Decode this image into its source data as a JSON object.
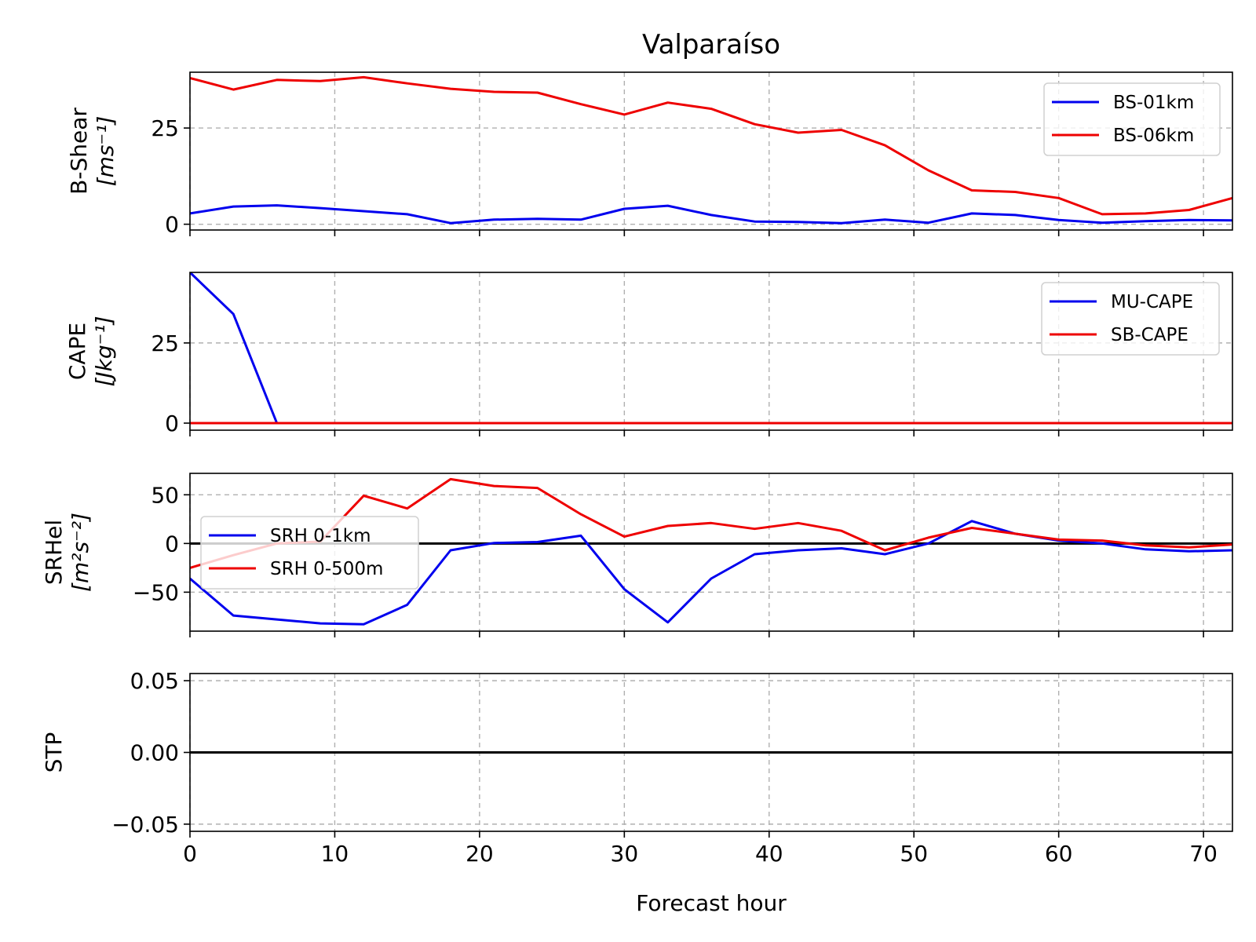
{
  "figure": {
    "title": "Valparaíso",
    "xlabel": "Forecast hour"
  },
  "chart_data": [
    {
      "type": "line",
      "ylabel_main": "B-Shear",
      "ylabel_unit": "[ms⁻¹]",
      "xlim": [
        0,
        72
      ],
      "ylim": [
        -1.5,
        39.5
      ],
      "xticks": [
        0,
        10,
        20,
        30,
        40,
        50,
        60,
        70
      ],
      "yticks": [
        0,
        25
      ],
      "ytick_labels": [
        "0",
        "25"
      ],
      "zero_line": false,
      "legend_loc": "upper-right",
      "x": [
        0,
        3,
        6,
        9,
        12,
        15,
        18,
        21,
        24,
        27,
        30,
        33,
        36,
        39,
        42,
        45,
        48,
        51,
        54,
        57,
        60,
        63,
        66,
        69,
        72
      ],
      "series": [
        {
          "name": "BS-01km",
          "color": "#0000ee",
          "values": [
            2.8,
            4.6,
            4.9,
            4.2,
            3.4,
            2.6,
            0.3,
            1.2,
            1.4,
            1.2,
            4.0,
            4.8,
            2.4,
            0.7,
            0.6,
            0.3,
            1.2,
            0.4,
            2.8,
            2.4,
            1.1,
            0.4,
            0.8,
            1.1,
            1.0
          ]
        },
        {
          "name": "BS-06km",
          "color": "#ee0000",
          "values": [
            38.0,
            35.0,
            37.5,
            37.2,
            38.2,
            36.6,
            35.2,
            34.4,
            34.2,
            31.2,
            28.5,
            31.6,
            30.0,
            26.0,
            23.8,
            24.5,
            20.5,
            14.0,
            8.8,
            8.4,
            6.8,
            2.6,
            2.8,
            3.7,
            6.8
          ]
        }
      ]
    },
    {
      "type": "line",
      "ylabel_main": "CAPE",
      "ylabel_unit": "[Jkg⁻¹]",
      "xlim": [
        0,
        72
      ],
      "ylim": [
        -2.2,
        47
      ],
      "xticks": [
        0,
        10,
        20,
        30,
        40,
        50,
        60,
        70
      ],
      "yticks": [
        0,
        25
      ],
      "ytick_labels": [
        "0",
        "25"
      ],
      "zero_line": false,
      "legend_loc": "upper-right",
      "x": [
        0,
        3,
        6,
        9,
        12,
        15,
        18,
        21,
        24,
        27,
        30,
        33,
        36,
        39,
        42,
        45,
        48,
        51,
        54,
        57,
        60,
        63,
        66,
        69,
        72
      ],
      "series": [
        {
          "name": "MU-CAPE",
          "color": "#0000ee",
          "values": [
            47,
            34,
            0,
            0,
            0,
            0,
            0,
            0,
            0,
            0,
            0,
            0,
            0,
            0,
            0,
            0,
            0,
            0,
            0,
            0,
            0,
            0,
            0,
            0,
            0
          ]
        },
        {
          "name": "SB-CAPE",
          "color": "#ee0000",
          "values": [
            0,
            0,
            0,
            0,
            0,
            0,
            0,
            0,
            0,
            0,
            0,
            0,
            0,
            0,
            0,
            0,
            0,
            0,
            0,
            0,
            0,
            0,
            0,
            0,
            0
          ]
        }
      ]
    },
    {
      "type": "line",
      "ylabel_main": "SRHel",
      "ylabel_unit": "[m²s⁻²]",
      "xlim": [
        0,
        72
      ],
      "ylim": [
        -90,
        72
      ],
      "xticks": [
        0,
        10,
        20,
        30,
        40,
        50,
        60,
        70
      ],
      "yticks": [
        -50,
        0,
        50
      ],
      "ytick_labels": [
        "−50",
        "0",
        "50"
      ],
      "zero_line": true,
      "legend_loc": "center-left",
      "x": [
        0,
        3,
        6,
        9,
        12,
        15,
        18,
        21,
        24,
        27,
        30,
        33,
        36,
        39,
        42,
        45,
        48,
        51,
        54,
        57,
        60,
        63,
        66,
        69,
        72
      ],
      "series": [
        {
          "name": "SRH 0-1km",
          "color": "#0000ee",
          "values": [
            -36,
            -74,
            -78,
            -82,
            -83,
            -63,
            -7,
            0.5,
            1.5,
            8,
            -47,
            -81,
            -36,
            -11,
            -7,
            -5,
            -11,
            0,
            23,
            10,
            3,
            0,
            -6,
            -8,
            -7
          ]
        },
        {
          "name": "SRH 0-500m",
          "color": "#ee0000",
          "values": [
            -25,
            -12,
            0,
            2,
            49,
            36,
            66,
            59,
            57,
            30,
            7,
            18,
            21,
            15,
            21,
            13,
            -7,
            6,
            16,
            10,
            4,
            3,
            -2,
            -4,
            -1
          ]
        }
      ]
    },
    {
      "type": "line",
      "ylabel_main": "STP",
      "ylabel_unit": "",
      "xlim": [
        0,
        72
      ],
      "ylim": [
        -0.055,
        0.055
      ],
      "xticks": [
        0,
        10,
        20,
        30,
        40,
        50,
        60,
        70
      ],
      "yticks": [
        -0.05,
        0,
        0.05
      ],
      "ytick_labels": [
        "−0.05",
        "0.00",
        "0.05"
      ],
      "zero_line": true,
      "legend_loc": "",
      "x": [
        0,
        3,
        6,
        9,
        12,
        15,
        18,
        21,
        24,
        27,
        30,
        33,
        36,
        39,
        42,
        45,
        48,
        51,
        54,
        57,
        60,
        63,
        66,
        69,
        72
      ],
      "series": [
        {
          "color": "#000000",
          "values": [
            0,
            0,
            0,
            0,
            0,
            0,
            0,
            0,
            0,
            0,
            0,
            0,
            0,
            0,
            0,
            0,
            0,
            0,
            0,
            0,
            0,
            0,
            0,
            0,
            0
          ]
        }
      ]
    }
  ]
}
